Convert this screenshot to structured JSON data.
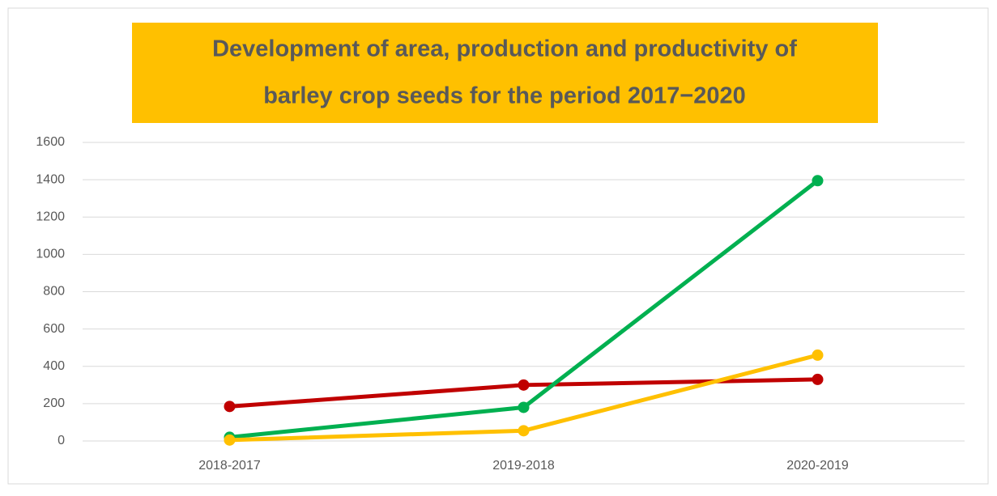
{
  "chart_data": {
    "type": "line",
    "title_lines": [
      "Development of area, production and productivity of",
      "barley crop seeds for the period 2017−2020"
    ],
    "categories": [
      "2018-2017",
      "2019-2018",
      "2020-2019"
    ],
    "series": [
      {
        "color": "#c00000",
        "values": [
          185,
          300,
          330
        ]
      },
      {
        "color": "#00b050",
        "values": [
          20,
          180,
          1395
        ]
      },
      {
        "color": "#ffc000",
        "values": [
          5,
          55,
          460
        ]
      }
    ],
    "ylim": [
      0,
      1600
    ],
    "yticks": [
      0,
      200,
      400,
      600,
      800,
      1000,
      1200,
      1400,
      1600
    ],
    "grid": true
  }
}
